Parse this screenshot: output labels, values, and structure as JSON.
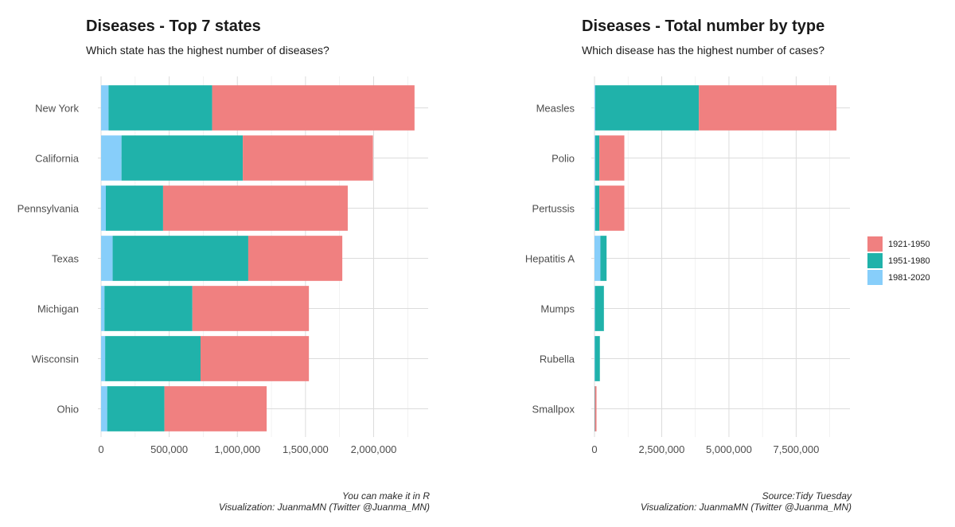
{
  "colors": {
    "period_1921_1950": "#f08080",
    "period_1951_1980": "#20b2aa",
    "period_1981_2020": "#87cefa",
    "grid": "#dcdcdc",
    "text": "#4d4d4d"
  },
  "legend": {
    "items": [
      "1921-1950",
      "1951-1980",
      "1981-2020"
    ]
  },
  "left": {
    "title": "Diseases - Top 7 states",
    "subtitle": "Which state has the highest number of diseases?",
    "caption_line1": "You can make it in R",
    "caption_line2": "Visualization: JuanmaMN (Twitter @Juanma_MN)"
  },
  "right": {
    "title": "Diseases - Total number by type",
    "subtitle": "Which disease has the highest number of cases?",
    "caption_line1": "Source:Tidy Tuesday",
    "caption_line2": "Visualization: JuanmaMN (Twitter @Juanma_MN)"
  },
  "chart_data": [
    {
      "type": "bar",
      "orientation": "horizontal",
      "stacked": true,
      "title": "Diseases - Top 7 states",
      "subtitle": "Which state has the highest number of diseases?",
      "categories": [
        "New York",
        "California",
        "Pennsylvania",
        "Texas",
        "Michigan",
        "Wisconsin",
        "Ohio"
      ],
      "series": [
        {
          "name": "1981-2020",
          "values": [
            55000,
            150000,
            35000,
            85000,
            25000,
            30000,
            45000
          ]
        },
        {
          "name": "1951-1980",
          "values": [
            760000,
            890000,
            420000,
            995000,
            645000,
            700000,
            420000
          ]
        },
        {
          "name": "1921-1950",
          "values": [
            1485000,
            955000,
            1355000,
            690000,
            855000,
            795000,
            750000
          ]
        }
      ],
      "x_ticks": [
        "0",
        "500,000",
        "1,000,000",
        "1,500,000",
        "2,000,000"
      ],
      "x_tick_values": [
        0,
        500000,
        1000000,
        1500000,
        2000000
      ],
      "xlim": [
        0,
        2400000
      ],
      "grid": true,
      "legend": "none"
    },
    {
      "type": "bar",
      "orientation": "horizontal",
      "stacked": true,
      "title": "Diseases - Total number by type",
      "subtitle": "Which disease has the highest number of cases?",
      "categories": [
        "Measles",
        "Polio",
        "Pertussis",
        "Hepatitis A",
        "Mumps",
        "Rubella",
        "Smallpox"
      ],
      "series": [
        {
          "name": "1981-2020",
          "values": [
            30000,
            30000,
            30000,
            220000,
            20000,
            15000,
            5000
          ]
        },
        {
          "name": "1951-1980",
          "values": [
            3850000,
            150000,
            150000,
            230000,
            330000,
            185000,
            10000
          ]
        },
        {
          "name": "1921-1950",
          "values": [
            5120000,
            930000,
            930000,
            0,
            0,
            0,
            60000
          ]
        }
      ],
      "x_ticks": [
        "0",
        "2,500,000",
        "5,000,000",
        "7,500,000"
      ],
      "x_tick_values": [
        0,
        2500000,
        5000000,
        7500000
      ],
      "xlim": [
        0,
        9500000
      ],
      "grid": true,
      "legend": "right"
    }
  ]
}
